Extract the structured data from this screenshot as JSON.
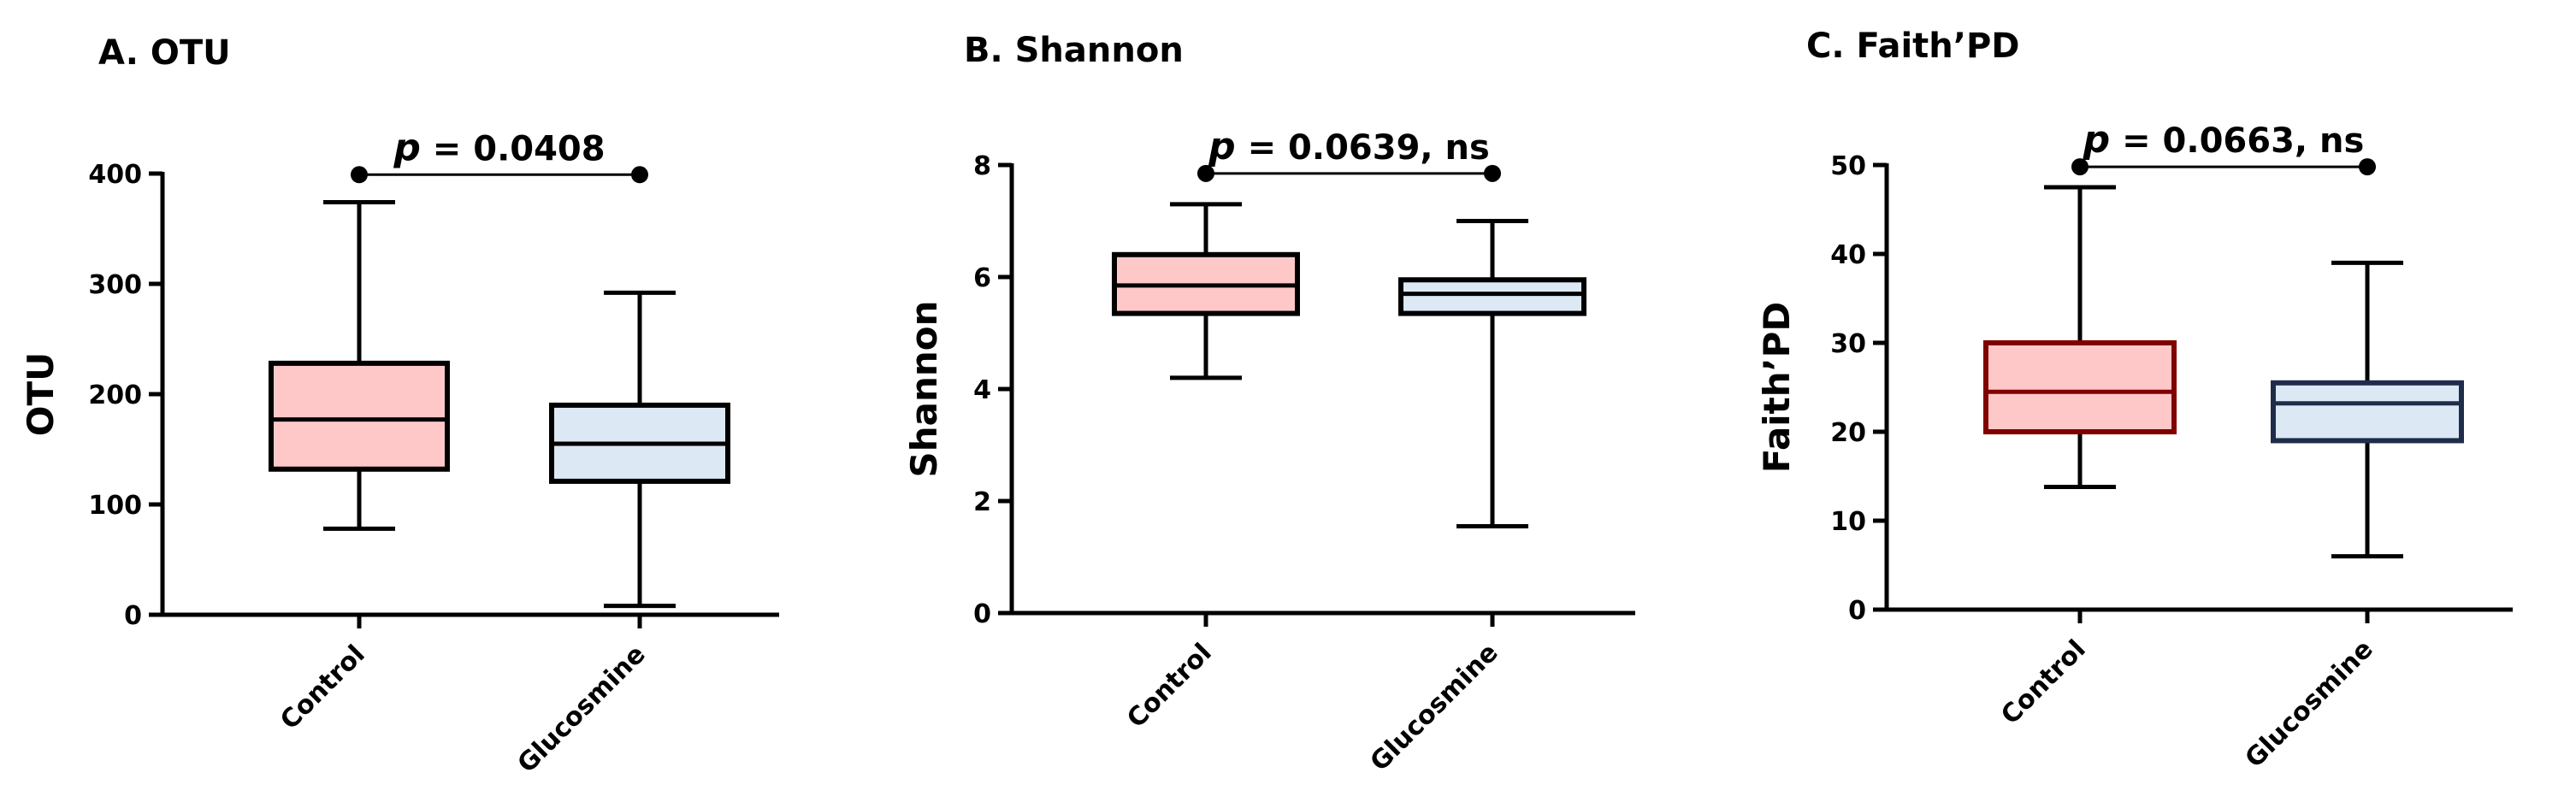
{
  "chart_data": [
    {
      "type": "box",
      "title": "A. OTU",
      "ylabel": "OTU",
      "ylim": [
        0,
        400
      ],
      "yticks": [
        0,
        100,
        200,
        300,
        400
      ],
      "categories": [
        "Control",
        "Glucosmine"
      ],
      "boxes": [
        {
          "category": "Control",
          "min": 78,
          "q1": 132,
          "median": 177,
          "q3": 228,
          "max": 374,
          "fill": "#ffc8c8",
          "stroke": "#000000"
        },
        {
          "category": "Glucosmine",
          "min": 8,
          "q1": 121,
          "median": 155,
          "q3": 190,
          "max": 292,
          "fill": "#dce9f5",
          "stroke": "#000000"
        }
      ],
      "comparison": {
        "p_symbol": "p",
        "p_text": " = 0.0408",
        "y": 399
      }
    },
    {
      "type": "box",
      "title": "B. Shannon",
      "ylabel": "Shannon",
      "ylim": [
        0,
        8
      ],
      "yticks": [
        0,
        2,
        4,
        6,
        8
      ],
      "categories": [
        "Control",
        "Glucosmine"
      ],
      "boxes": [
        {
          "category": "Control",
          "min": 4.2,
          "q1": 5.35,
          "median": 5.85,
          "q3": 6.4,
          "max": 7.3,
          "fill": "#ffc8c8",
          "stroke": "#000000"
        },
        {
          "category": "Glucosmine",
          "min": 1.55,
          "q1": 5.35,
          "median": 5.7,
          "q3": 5.95,
          "max": 7.0,
          "fill": "#dce9f5",
          "stroke": "#000000"
        }
      ],
      "comparison": {
        "p_symbol": "p",
        "p_text": " = 0.0639, ns",
        "y": 7.85
      }
    },
    {
      "type": "box",
      "title": "C. Faith’PD",
      "ylabel": "Faith’PD",
      "ylim": [
        0,
        50
      ],
      "yticks": [
        0,
        10,
        20,
        30,
        40,
        50
      ],
      "categories": [
        "Control",
        "Glucosmine"
      ],
      "boxes": [
        {
          "category": "Control",
          "min": 13.8,
          "q1": 20,
          "median": 24.5,
          "q3": 30,
          "max": 47.5,
          "fill": "#ffc8c8",
          "stroke": "#800000"
        },
        {
          "category": "Glucosmine",
          "min": 6,
          "q1": 19,
          "median": 23.2,
          "q3": 25.5,
          "max": 39,
          "fill": "#dce9f5",
          "stroke": "#1f2d4a"
        }
      ],
      "comparison": {
        "p_symbol": "p",
        "p_text": " = 0.0663, ns",
        "y": 49.8
      }
    }
  ]
}
